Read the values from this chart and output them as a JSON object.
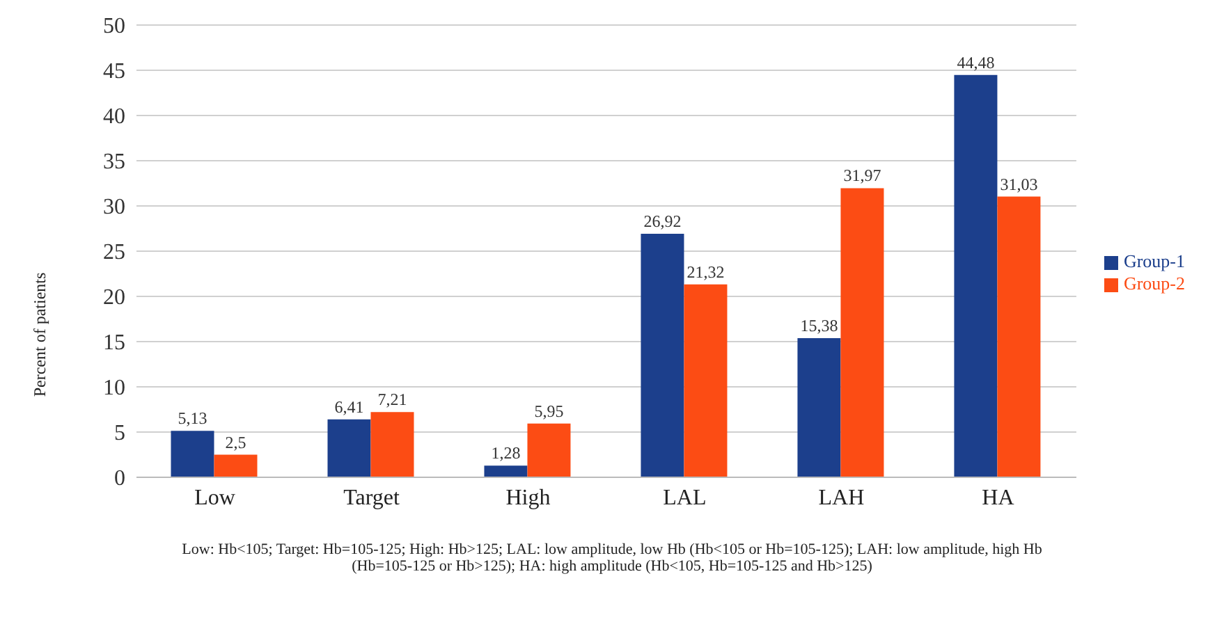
{
  "chart_data": {
    "type": "bar",
    "ylabel": "Percent of patients",
    "categories": [
      "Low",
      "Target",
      "High",
      "LAL",
      "LAH",
      "HA"
    ],
    "series": [
      {
        "name": "Group-1",
        "color": "#1c3f8c",
        "values": [
          5.13,
          6.41,
          1.28,
          26.92,
          15.38,
          44.48
        ],
        "value_labels": [
          "5,13",
          "6,41",
          "1,28",
          "26,92",
          "15,38",
          "44,48"
        ]
      },
      {
        "name": "Group-2",
        "color": "#fc4c14",
        "values": [
          2.5,
          7.21,
          5.95,
          21.32,
          31.97,
          31.03
        ],
        "value_labels": [
          "2,5",
          "7,21",
          "5,95",
          "21,32",
          "31,97",
          "31,03"
        ]
      }
    ],
    "ylim": [
      0,
      50
    ],
    "yticks": [
      0,
      5,
      10,
      15,
      20,
      25,
      30,
      35,
      40,
      45,
      50
    ],
    "grid": "y",
    "legend": "right",
    "annotations": [
      "Low: Hb<105; Target: Hb=105-125; High: Hb>125; LAL: low amplitude, low Hb (Hb<105 or Hb=105-125); LAH: low amplitude, high Hb (Hb=105-125 or Hb>125); HA: high amplitude (Hb<105, Hb=105-125 and Hb>125)"
    ]
  }
}
